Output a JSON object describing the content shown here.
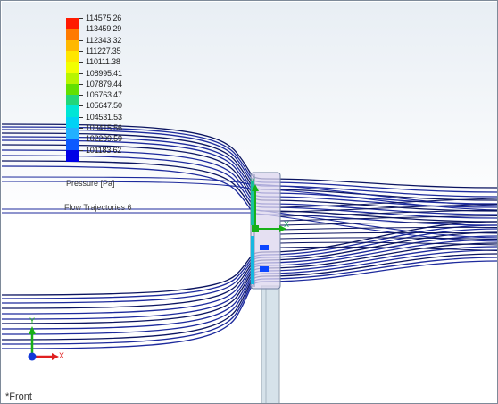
{
  "legend": {
    "values": [
      "114575.26",
      "113459.29",
      "112343.32",
      "111227.35",
      "110111.38",
      "108995.41",
      "107879.44",
      "106763.47",
      "105647.50",
      "104531.53",
      "103415.56",
      "102299.59",
      "101183.62"
    ],
    "colors": [
      "#ff1a00",
      "#ff7a00",
      "#ffb800",
      "#ffe600",
      "#f2ff00",
      "#b8f500",
      "#62e000",
      "#22d67a",
      "#00e6d6",
      "#00d2f5",
      "#22b0ff",
      "#0c5aff",
      "#0000e6"
    ],
    "title": "Pressure [Pa]"
  },
  "trajectory_label": "Flow Trajectories 6",
  "view_label": "*Front",
  "axes": {
    "x_label": "X",
    "y_label": "Y"
  },
  "colors": {
    "streamline": "#1d2a9c",
    "streamline_dark": "#0b1460",
    "triad_x": "#e02020",
    "triad_y": "#18b018",
    "triad_z": "#1038d8"
  }
}
